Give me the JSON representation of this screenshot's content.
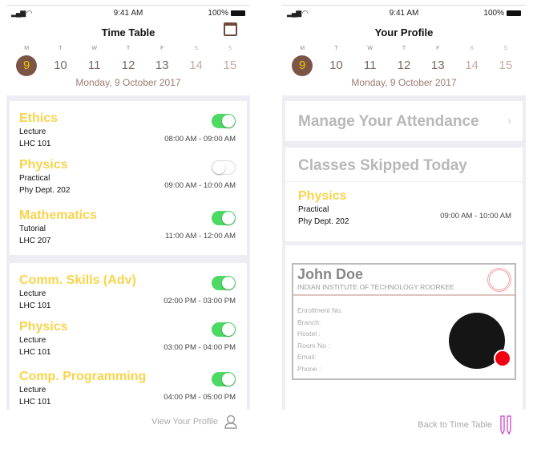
{
  "status": {
    "time": "9:41 AM",
    "battery": "100%",
    "signal": "signal-wifi-icons"
  },
  "week": {
    "letters": [
      "M",
      "T",
      "W",
      "T",
      "F",
      "S",
      "S"
    ],
    "dates": [
      "9",
      "10",
      "11",
      "12",
      "13",
      "14",
      "15"
    ],
    "selected": "9",
    "date_label": "Monday, 9 October 2017"
  },
  "timetable": {
    "title": "Time Table",
    "cards": [
      [
        {
          "name": "Ethics",
          "type": "Lecture",
          "room": "LHC 101",
          "time": "08:00 AM - 09:00 AM",
          "on": true
        },
        {
          "name": "Physics",
          "type": "Practical",
          "room": "Phy Dept. 202",
          "time": "09:00 AM - 10:00 AM",
          "on": false
        },
        {
          "name": "Mathematics",
          "type": "Tutorial",
          "room": "LHC 207",
          "time": "11:00 AM - 12:00 AM",
          "on": true
        }
      ],
      [
        {
          "name": "Comm. Skills (Adv)",
          "type": "Lecture",
          "room": "LHC 101",
          "time": "02:00 PM - 03:00 PM",
          "on": true
        },
        {
          "name": "Physics",
          "type": "Lecture",
          "room": "LHC 101",
          "time": "03:00 PM - 04:00 PM",
          "on": true
        },
        {
          "name": "Comp. Programming",
          "type": "Lecture",
          "room": "LHC 101",
          "time": "04:00 PM - 05:00 PM",
          "on": true
        }
      ]
    ],
    "footer": "View Your Profile"
  },
  "profile": {
    "title": "Your Profile",
    "manage": "Manage Your Attendance",
    "skipped_title": "Classes Skipped Today",
    "skipped": {
      "name": "Physics",
      "type": "Practical",
      "room": "Phy Dept. 202",
      "time": "09:00 AM - 10:00 AM"
    },
    "id": {
      "name": "John Doe",
      "institute": "INDIAN INSTITUTE OF TECHNOLOGY ROORKEE",
      "fields": [
        "Enrollment No:",
        "Branch:",
        "Hostel :",
        "Room No :",
        "Email:",
        "Phone :"
      ]
    },
    "footer": "Back to Time Table"
  },
  "colors": {
    "accent": "#f8d44c",
    "brown": "#7d5546",
    "toggle_on": "#4cd964",
    "status_dot": "#ee0011"
  }
}
